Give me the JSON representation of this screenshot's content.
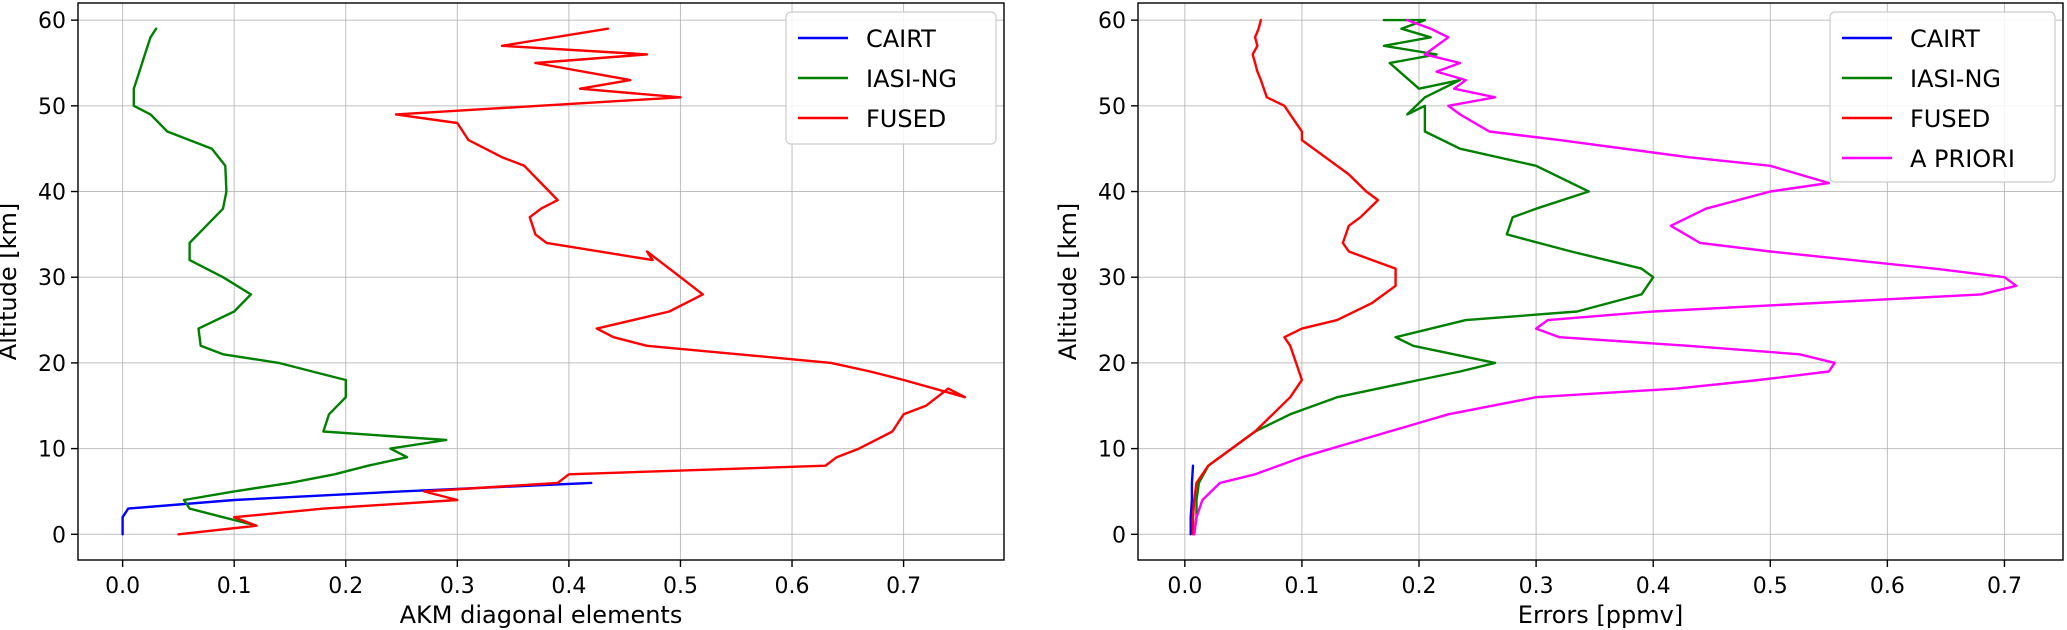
{
  "chart_data": [
    {
      "type": "line",
      "xlabel": "AKM diagonal elements",
      "ylabel": "Altitude [km]",
      "xlim": [
        -0.04,
        0.79
      ],
      "ylim": [
        -3,
        62
      ],
      "xticks": [
        0.0,
        0.1,
        0.2,
        0.3,
        0.4,
        0.5,
        0.6,
        0.7
      ],
      "xtick_labels": [
        "0.0",
        "0.1",
        "0.2",
        "0.3",
        "0.4",
        "0.5",
        "0.6",
        "0.7"
      ],
      "yticks": [
        0,
        10,
        20,
        30,
        40,
        50,
        60
      ],
      "ytick_labels": [
        "0",
        "10",
        "20",
        "30",
        "40",
        "50",
        "60"
      ],
      "grid": true,
      "legend_position": "top-right",
      "series": [
        {
          "name": "CAIRT",
          "color": "#0000ff",
          "x": [
            0.0,
            0.0,
            0.005,
            0.1,
            0.25,
            0.42
          ],
          "y": [
            0,
            2,
            3,
            4,
            5,
            6
          ]
        },
        {
          "name": "IASI-NG",
          "color": "#008000",
          "x": [
            0.12,
            0.09,
            0.06,
            0.055,
            0.1,
            0.15,
            0.19,
            0.22,
            0.255,
            0.24,
            0.29,
            0.18,
            0.185,
            0.2,
            0.2,
            0.17,
            0.14,
            0.09,
            0.07,
            0.068,
            0.1,
            0.115,
            0.09,
            0.06,
            0.06,
            0.075,
            0.09,
            0.093,
            0.092,
            0.08,
            0.04,
            0.025,
            0.01,
            0.01,
            0.015,
            0.02,
            0.025,
            0.03
          ],
          "y": [
            1,
            2,
            3,
            4,
            5,
            6,
            7,
            8,
            9,
            10,
            11,
            12,
            14,
            16,
            18,
            19,
            20,
            21,
            22,
            24,
            26,
            28,
            30,
            32,
            34,
            36,
            38,
            40,
            43,
            45,
            47,
            49,
            50,
            52,
            54,
            56,
            58,
            59
          ]
        },
        {
          "name": "FUSED",
          "color": "#ff0000",
          "x": [
            0.05,
            0.12,
            0.1,
            0.18,
            0.3,
            0.27,
            0.39,
            0.4,
            0.63,
            0.64,
            0.66,
            0.69,
            0.695,
            0.7,
            0.72,
            0.74,
            0.755,
            0.7,
            0.67,
            0.635,
            0.47,
            0.44,
            0.425,
            0.49,
            0.52,
            0.5,
            0.49,
            0.47,
            0.475,
            0.38,
            0.37,
            0.365,
            0.375,
            0.39,
            0.375,
            0.36,
            0.34,
            0.31,
            0.3,
            0.245,
            0.5,
            0.41,
            0.455,
            0.37,
            0.47,
            0.34,
            0.435
          ],
          "y": [
            0,
            1,
            2,
            3,
            4,
            5,
            6,
            7,
            8,
            9,
            10,
            12,
            13,
            14,
            15,
            17,
            16,
            18,
            19,
            20,
            22,
            23,
            24,
            26,
            28,
            30,
            31,
            33,
            32,
            34,
            35,
            37,
            38,
            39,
            41,
            43,
            44,
            46,
            48,
            49,
            51,
            52,
            53,
            55,
            56,
            57,
            59
          ]
        }
      ]
    },
    {
      "type": "line",
      "xlabel": "Errors [ppmv]",
      "ylabel": "Altitude [km]",
      "xlim": [
        -0.04,
        0.75
      ],
      "ylim": [
        -3,
        62
      ],
      "xticks": [
        0.0,
        0.1,
        0.2,
        0.3,
        0.4,
        0.5,
        0.6,
        0.7
      ],
      "xtick_labels": [
        "0.0",
        "0.1",
        "0.2",
        "0.3",
        "0.4",
        "0.5",
        "0.6",
        "0.7"
      ],
      "yticks": [
        0,
        10,
        20,
        30,
        40,
        50,
        60
      ],
      "ytick_labels": [
        "0",
        "10",
        "20",
        "30",
        "40",
        "50",
        "60"
      ],
      "grid": true,
      "legend_position": "top-right",
      "series": [
        {
          "name": "CAIRT",
          "color": "#0000ff",
          "x": [
            0.005,
            0.005,
            0.006,
            0.006,
            0.007
          ],
          "y": [
            0,
            2,
            4,
            6,
            8
          ]
        },
        {
          "name": "IASI-NG",
          "color": "#008000",
          "x": [
            0.008,
            0.01,
            0.01,
            0.012,
            0.02,
            0.04,
            0.06,
            0.09,
            0.13,
            0.2,
            0.235,
            0.265,
            0.195,
            0.18,
            0.24,
            0.335,
            0.39,
            0.4,
            0.39,
            0.33,
            0.275,
            0.28,
            0.3,
            0.345,
            0.3,
            0.235,
            0.205,
            0.205,
            0.19,
            0.205,
            0.235,
            0.2,
            0.175,
            0.215,
            0.17,
            0.21,
            0.185,
            0.205,
            0.17
          ],
          "y": [
            0,
            2,
            4,
            6,
            8,
            10,
            12,
            14,
            16,
            18,
            19,
            20,
            22,
            23,
            25,
            26,
            28,
            30,
            31,
            33,
            35,
            37,
            38,
            40,
            43,
            45,
            47,
            50,
            49,
            51,
            53,
            52,
            55,
            56,
            57,
            58,
            59,
            60,
            60
          ]
        },
        {
          "name": "FUSED",
          "color": "#ff0000",
          "x": [
            0.007,
            0.007,
            0.008,
            0.01,
            0.02,
            0.04,
            0.06,
            0.075,
            0.09,
            0.1,
            0.095,
            0.09,
            0.085,
            0.1,
            0.13,
            0.16,
            0.18,
            0.18,
            0.16,
            0.14,
            0.135,
            0.14,
            0.15,
            0.165,
            0.155,
            0.14,
            0.12,
            0.1,
            0.1,
            0.09,
            0.085,
            0.07,
            0.065,
            0.062,
            0.06,
            0.058,
            0.062,
            0.06,
            0.063,
            0.065
          ],
          "y": [
            0,
            2,
            4,
            6,
            8,
            10,
            12,
            14,
            16,
            18,
            20,
            22,
            23,
            24,
            25,
            27,
            29,
            31,
            32,
            33,
            34,
            36,
            37,
            39,
            40,
            42,
            44,
            46,
            47,
            49,
            50,
            51,
            53,
            54,
            55,
            56,
            57,
            58,
            59,
            60
          ]
        },
        {
          "name": "A PRIORI",
          "color": "#ff00ff",
          "x": [
            0.008,
            0.01,
            0.015,
            0.03,
            0.06,
            0.1,
            0.15,
            0.2,
            0.225,
            0.3,
            0.42,
            0.49,
            0.55,
            0.555,
            0.525,
            0.43,
            0.32,
            0.3,
            0.31,
            0.4,
            0.68,
            0.71,
            0.7,
            0.64,
            0.5,
            0.44,
            0.415,
            0.445,
            0.5,
            0.55,
            0.5,
            0.43,
            0.32,
            0.26,
            0.235,
            0.225,
            0.265,
            0.23,
            0.24,
            0.215,
            0.235,
            0.205,
            0.225,
            0.21,
            0.19
          ],
          "y": [
            0,
            2,
            4,
            6,
            7,
            9,
            11,
            13,
            14,
            16,
            17,
            18,
            19,
            20,
            21,
            22,
            23,
            24,
            25,
            26,
            28,
            29,
            30,
            31,
            33,
            34,
            36,
            38,
            40,
            41,
            43,
            44,
            46,
            47,
            49,
            50,
            51,
            52,
            53,
            54,
            55,
            56,
            58,
            59,
            60
          ]
        }
      ]
    }
  ]
}
